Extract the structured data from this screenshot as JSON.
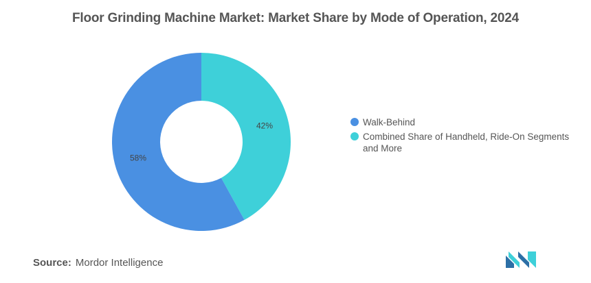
{
  "title": "Floor Grinding Machine Market: Market Share by Mode of Operation, 2024",
  "source": {
    "key": "Source:",
    "value": "Mordor Intelligence"
  },
  "colors": {
    "walk_behind": "#4a90e2",
    "combined": "#3ed0d9",
    "text": "#555555"
  },
  "chart_data": {
    "type": "pie",
    "variant": "donut",
    "title": "Floor Grinding Machine Market: Market Share by Mode of Operation, 2024",
    "legend_position": "right",
    "categories": [
      "Walk-Behind",
      "Combined Share of Handheld, Ride-On Segments and More"
    ],
    "values": [
      58,
      42
    ],
    "data_labels": [
      "58%",
      "42%"
    ],
    "colors": [
      "#4a90e2",
      "#3ed0d9"
    ]
  }
}
